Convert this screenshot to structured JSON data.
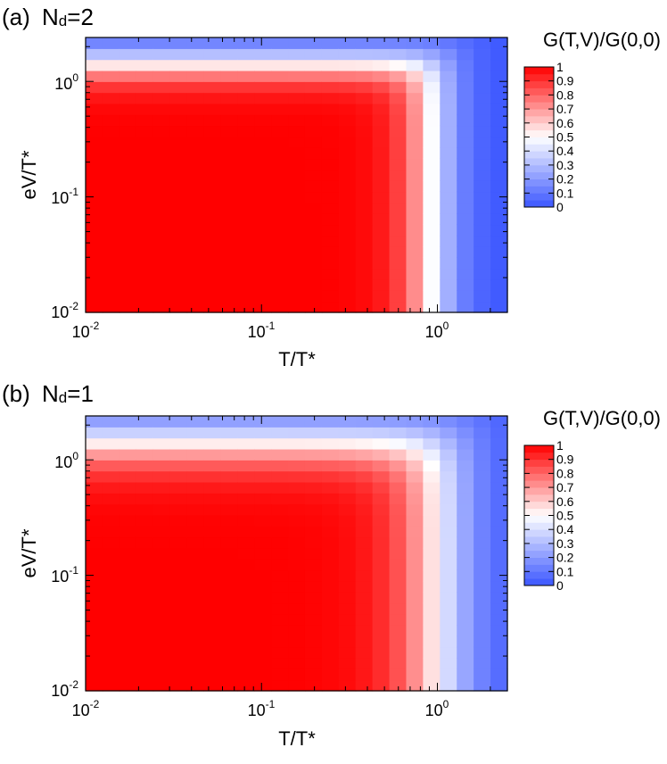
{
  "chart_data": [
    {
      "type": "heatmap",
      "panel_label": "(a)",
      "title_var": "N",
      "title_sub": "d",
      "title_value": "=2",
      "xlabel": "T/T*",
      "ylabel": "eV/T*",
      "x_scale": "log",
      "y_scale": "log",
      "xlim": [
        0.01,
        2.5
      ],
      "ylim": [
        0.01,
        2.4
      ],
      "x_tick_labels": [
        {
          "base": "10",
          "exp": "-2"
        },
        {
          "base": "10",
          "exp": "-1"
        },
        {
          "base": "10",
          "exp": "0"
        }
      ],
      "y_tick_labels": [
        {
          "base": "10",
          "exp": "-2"
        },
        {
          "base": "10",
          "exp": "-1"
        },
        {
          "base": "10",
          "exp": "0"
        }
      ],
      "colorbar_title": "G(T,V)/G(0,0)",
      "colorbar_ticks": [
        "1",
        "0.9",
        "0.8",
        "0.7",
        "0.6",
        "0.5",
        "0.4",
        "0.3",
        "0.2",
        "0.1",
        "0"
      ],
      "zlim": [
        0,
        1
      ],
      "colormap": {
        "low": "#3a55ff",
        "mid": "#ffffff",
        "high": "#ff0000"
      },
      "model": "G/G0 ≈ 1/(1+(T/Tc)^n + (eV/Vc)^n), grid of 25 x 25 cells",
      "model_params": {
        "Tc": 0.92,
        "Vc": 1.45,
        "n": 4.5
      }
    },
    {
      "type": "heatmap",
      "panel_label": "(b)",
      "title_var": "N",
      "title_sub": "d",
      "title_value": "=1",
      "xlabel": "T/T*",
      "ylabel": "eV/T*",
      "x_scale": "log",
      "y_scale": "log",
      "xlim": [
        0.01,
        2.5
      ],
      "ylim": [
        0.01,
        2.4
      ],
      "x_tick_labels": [
        {
          "base": "10",
          "exp": "-2"
        },
        {
          "base": "10",
          "exp": "-1"
        },
        {
          "base": "10",
          "exp": "0"
        }
      ],
      "y_tick_labels": [
        {
          "base": "10",
          "exp": "-2"
        },
        {
          "base": "10",
          "exp": "-1"
        },
        {
          "base": "10",
          "exp": "0"
        }
      ],
      "colorbar_title": "G(T,V)/G(0,0)",
      "colorbar_ticks": [
        "1",
        "0.9",
        "0.8",
        "0.7",
        "0.6",
        "0.5",
        "0.4",
        "0.3",
        "0.2",
        "0.1",
        "0"
      ],
      "zlim": [
        0,
        1
      ],
      "colormap": {
        "low": "#3a55ff",
        "mid": "#ffffff",
        "high": "#ff0000"
      },
      "model": "G/G0 ≈ 1/(1+(T/Tc)^n + (eV/Vc)^n), grid of 25 x 25 cells",
      "model_params": {
        "Tc": 1.0,
        "Vc": 1.45,
        "n": 3.2
      }
    }
  ]
}
